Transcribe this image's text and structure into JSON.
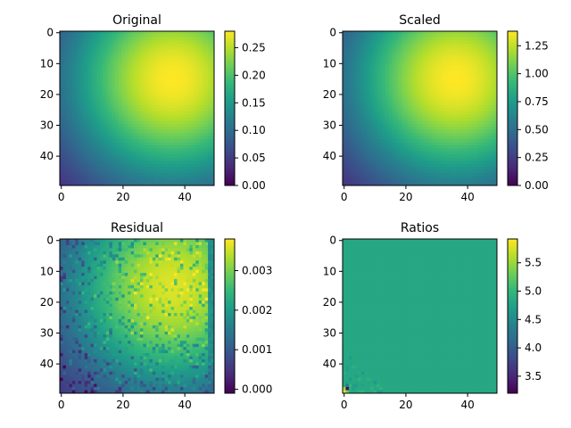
{
  "figure": {
    "colormap": "viridis",
    "colormap_stops": [
      "#440154",
      "#482878",
      "#3e4989",
      "#31688e",
      "#26828e",
      "#1f9e89",
      "#35b779",
      "#6ece58",
      "#b5de2b",
      "#fde725"
    ]
  },
  "chart_data": [
    {
      "type": "heatmap",
      "title": "Original",
      "grid_size": [
        50,
        50
      ],
      "pattern": "smooth",
      "peak_position": [
        36,
        15
      ],
      "xticks": [
        0,
        20,
        40
      ],
      "yticks": [
        0,
        10,
        20,
        30,
        40
      ],
      "colorbar": {
        "range": [
          0,
          0.28
        ],
        "ticks": [
          "0.00",
          "0.05",
          "0.10",
          "0.15",
          "0.20",
          "0.25"
        ]
      },
      "value_range": [
        0,
        0.28
      ]
    },
    {
      "type": "heatmap",
      "title": "Scaled",
      "grid_size": [
        50,
        50
      ],
      "pattern": "smooth",
      "peak_position": [
        36,
        15
      ],
      "xticks": [
        0,
        20,
        40
      ],
      "yticks": [
        0,
        10,
        20,
        30,
        40
      ],
      "colorbar": {
        "range": [
          0,
          1.38
        ],
        "ticks": [
          "0.00",
          "0.25",
          "0.50",
          "0.75",
          "1.00",
          "1.25"
        ]
      },
      "value_range": [
        0,
        1.38
      ]
    },
    {
      "type": "heatmap",
      "title": "Residual",
      "grid_size": [
        50,
        50
      ],
      "pattern": "noisy",
      "peak_position": [
        36,
        15
      ],
      "xticks": [
        0,
        20,
        40
      ],
      "yticks": [
        0,
        10,
        20,
        30,
        40
      ],
      "colorbar": {
        "range": [
          -0.0001,
          0.0038
        ],
        "ticks": [
          "0.000",
          "0.001",
          "0.002",
          "0.003"
        ]
      },
      "value_range": [
        -0.0001,
        0.0038
      ]
    },
    {
      "type": "heatmap",
      "title": "Ratios",
      "grid_size": [
        50,
        50
      ],
      "pattern": "flat",
      "base_value": 4.82,
      "xticks": [
        0,
        20,
        40
      ],
      "yticks": [
        0,
        10,
        20,
        30,
        40
      ],
      "colorbar": {
        "range": [
          3.2,
          5.92
        ],
        "ticks": [
          "3.5",
          "4.0",
          "4.5",
          "5.0",
          "5.5"
        ]
      },
      "value_range": [
        3.2,
        5.92
      ]
    }
  ]
}
